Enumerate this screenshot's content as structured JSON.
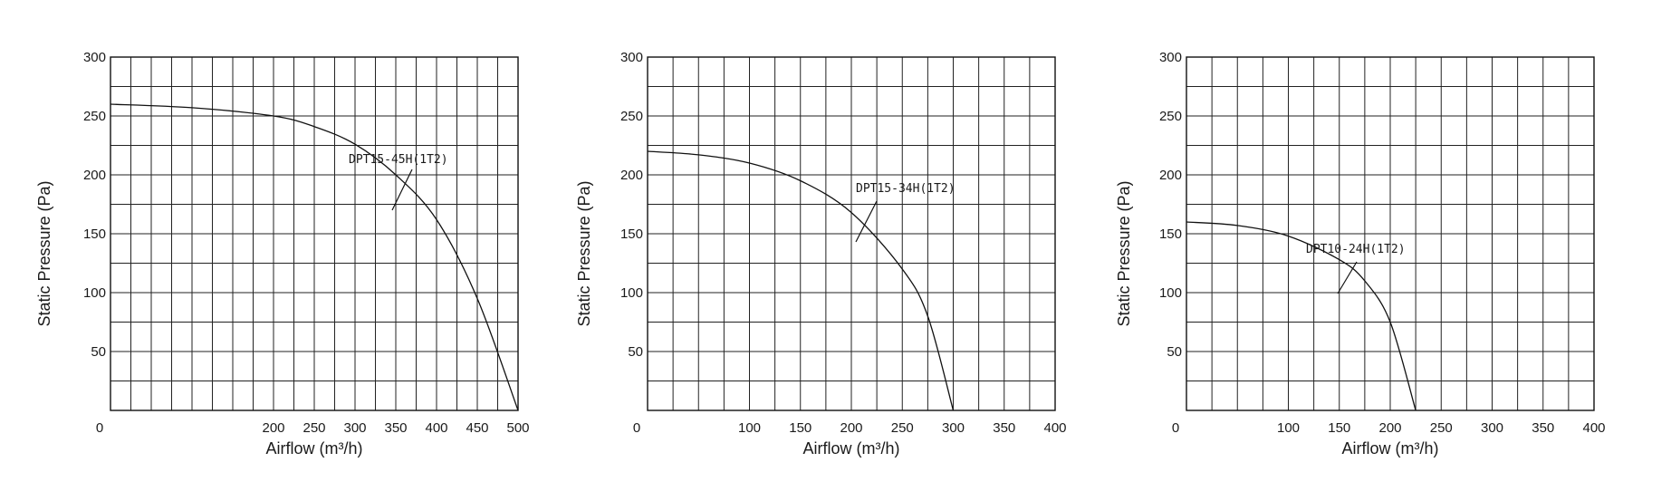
{
  "chart_data": [
    {
      "type": "line",
      "xlabel": "Airflow (m³/h)",
      "ylabel": "Static Pressure (Pa)",
      "xlim": [
        0,
        500
      ],
      "ylim": [
        0,
        300
      ],
      "xticks": [
        "0",
        "200",
        "250",
        "300",
        "350",
        "400",
        "450",
        "500"
      ],
      "yticks": [
        "50",
        "100",
        "150",
        "200",
        "250",
        "300"
      ],
      "grid": true,
      "series": [
        {
          "name": "DPT15-45H(1T2)",
          "x": [
            0,
            100,
            200,
            250,
            300,
            350,
            400,
            450,
            500
          ],
          "y": [
            260,
            257,
            250,
            241,
            226,
            200,
            162,
            95,
            0
          ]
        }
      ]
    },
    {
      "type": "line",
      "xlabel": "Airflow (m³/h)",
      "ylabel": "Static Pressure (Pa)",
      "xlim": [
        0,
        400
      ],
      "ylim": [
        0,
        300
      ],
      "xticks": [
        "0",
        "100",
        "150",
        "200",
        "250",
        "300",
        "350",
        "400"
      ],
      "yticks": [
        "50",
        "100",
        "150",
        "200",
        "250",
        "300"
      ],
      "grid": true,
      "series": [
        {
          "name": "DPT15-34H(1T2)",
          "x": [
            0,
            50,
            100,
            150,
            200,
            250,
            275,
            300
          ],
          "y": [
            220,
            217,
            210,
            195,
            168,
            120,
            80,
            0
          ]
        }
      ]
    },
    {
      "type": "line",
      "xlabel": "Airflow (m³/h)",
      "ylabel": "Static Pressure (Pa)",
      "xlim": [
        0,
        400
      ],
      "ylim": [
        0,
        300
      ],
      "xticks": [
        "0",
        "100",
        "150",
        "200",
        "250",
        "300",
        "350",
        "400"
      ],
      "yticks": [
        "50",
        "100",
        "150",
        "200",
        "250",
        "300"
      ],
      "grid": true,
      "series": [
        {
          "name": "DPT10-24H(1T2)",
          "x": [
            0,
            50,
            100,
            150,
            175,
            200,
            225
          ],
          "y": [
            160,
            157,
            148,
            128,
            110,
            75,
            0
          ]
        }
      ]
    }
  ]
}
